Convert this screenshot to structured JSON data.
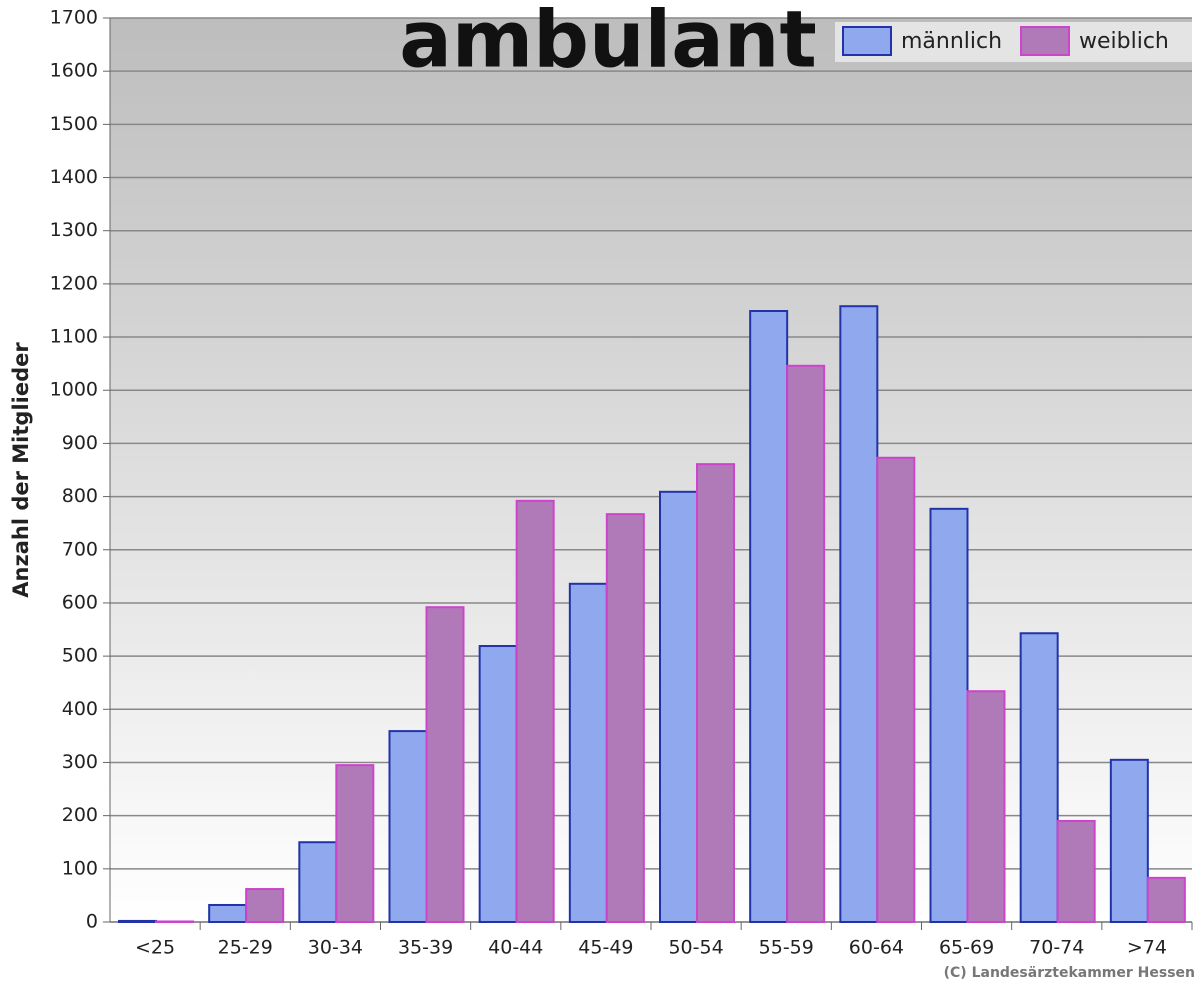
{
  "chart_data": {
    "type": "bar",
    "title": "ambulant",
    "y_label": "Anzahl der Mitglieder",
    "source": "(C) Landesärztekammer Hessen",
    "categories": [
      "<25",
      "25-29",
      "30-34",
      "35-39",
      "40-44",
      "45-49",
      "50-54",
      "55-59",
      "60-64",
      "65-69",
      "70-74",
      ">74"
    ],
    "series": [
      {
        "name": "männlich",
        "color": "#8fa8ee",
        "edge": "#2233aa",
        "values": [
          2,
          32,
          150,
          359,
          519,
          636,
          809,
          1149,
          1158,
          777,
          543,
          305
        ]
      },
      {
        "name": "weiblich",
        "color": "#b07ab8",
        "edge": "#cc44cc",
        "values": [
          1,
          62,
          295,
          592,
          792,
          767,
          861,
          1046,
          873,
          434,
          190,
          83
        ]
      }
    ],
    "ylim": [
      0,
      1700
    ],
    "yticks": [
      0,
      100,
      200,
      300,
      400,
      500,
      600,
      700,
      800,
      900,
      1000,
      1100,
      1200,
      1300,
      1400,
      1500,
      1600,
      1700
    ],
    "grid": true,
    "legend": "top-right"
  }
}
